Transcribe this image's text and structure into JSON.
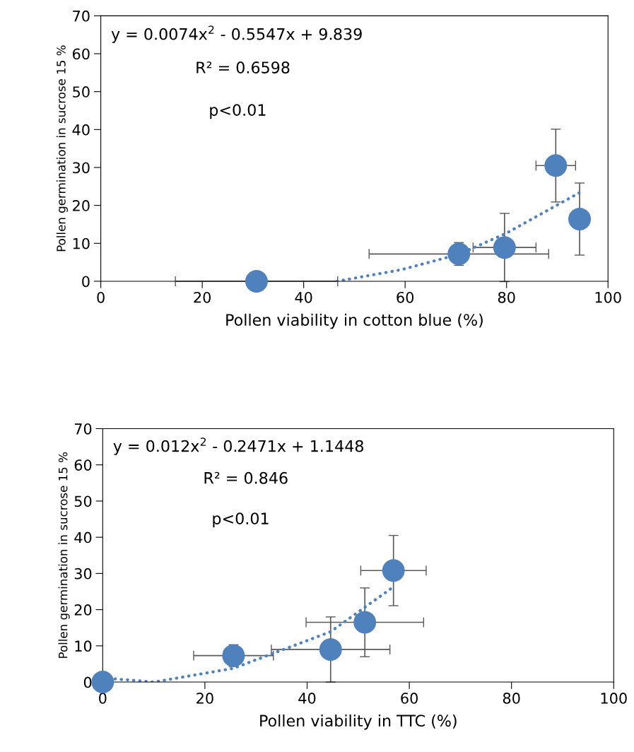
{
  "chart_data": [
    {
      "type": "scatter",
      "xlabel": "Pollen viability in cotton blue (%)",
      "ylabel": "Pollen germination in sucrose 15 %",
      "xlim": [
        0,
        100
      ],
      "xticks": [
        0,
        20,
        40,
        60,
        80,
        100
      ],
      "ylim": [
        0,
        70
      ],
      "yticks": [
        0,
        10,
        20,
        30,
        40,
        50,
        60,
        70
      ],
      "annotations": [
        "y = 0.0074x$^{2}$ - 0.5547x + 9.839",
        "R² = 0.6598",
        "p<0.01"
      ],
      "series": [
        {
          "type": "scatter",
          "color": "#4f81bd",
          "marker": "circle",
          "x": [
            30.7,
            70.6,
            79.6,
            89.7,
            94.4
          ],
          "values": [
            0,
            7.2,
            8.9,
            30.5,
            16.4
          ],
          "errors": [
            0,
            3,
            9,
            9.6,
            9.5
          ],
          "xerrors": [
            16,
            17.7,
            6.2,
            3.9,
            null
          ]
        },
        {
          "type": "line",
          "color": "#4f81bd",
          "line_style": "dotted",
          "x": [
            46.6,
            59.1,
            70.6,
            80,
            94.3
          ],
          "values": [
            0,
            3.0,
            7.1,
            12.7,
            23.3
          ]
        }
      ]
    },
    {
      "type": "scatter",
      "xlabel": "Pollen viability in TTC (%)",
      "ylabel": "Pollen germination in sucrose 15 %",
      "xlim": [
        0,
        100
      ],
      "xticks": [
        0,
        20,
        40,
        60,
        80,
        100
      ],
      "ylim": [
        0,
        70
      ],
      "yticks": [
        0,
        10,
        20,
        30,
        40,
        50,
        60,
        70
      ],
      "annotations": [
        "y = 0.012x$^{2}$ - 0.2471x + 1.1448",
        "R² = 0.846",
        "p<0.01"
      ],
      "series": [
        {
          "type": "scatter",
          "color": "#4f81bd",
          "marker": "circle",
          "x": [
            0,
            25.6,
            44.6,
            51.3,
            56.9
          ],
          "values": [
            0,
            7.3,
            9.0,
            16.5,
            30.8
          ],
          "errors": [
            0,
            3,
            9,
            9.5,
            9.7
          ],
          "xerrors": [
            0,
            7.8,
            11.6,
            11.5,
            6.4
          ]
        },
        {
          "type": "line",
          "color": "#4f81bd",
          "line_style": "dotted",
          "x": [
            0,
            5,
            10,
            25.6,
            44.6,
            56.4
          ],
          "values": [
            1.1,
            0.6,
            0,
            3.8,
            13.9,
            25.8
          ]
        }
      ]
    }
  ]
}
